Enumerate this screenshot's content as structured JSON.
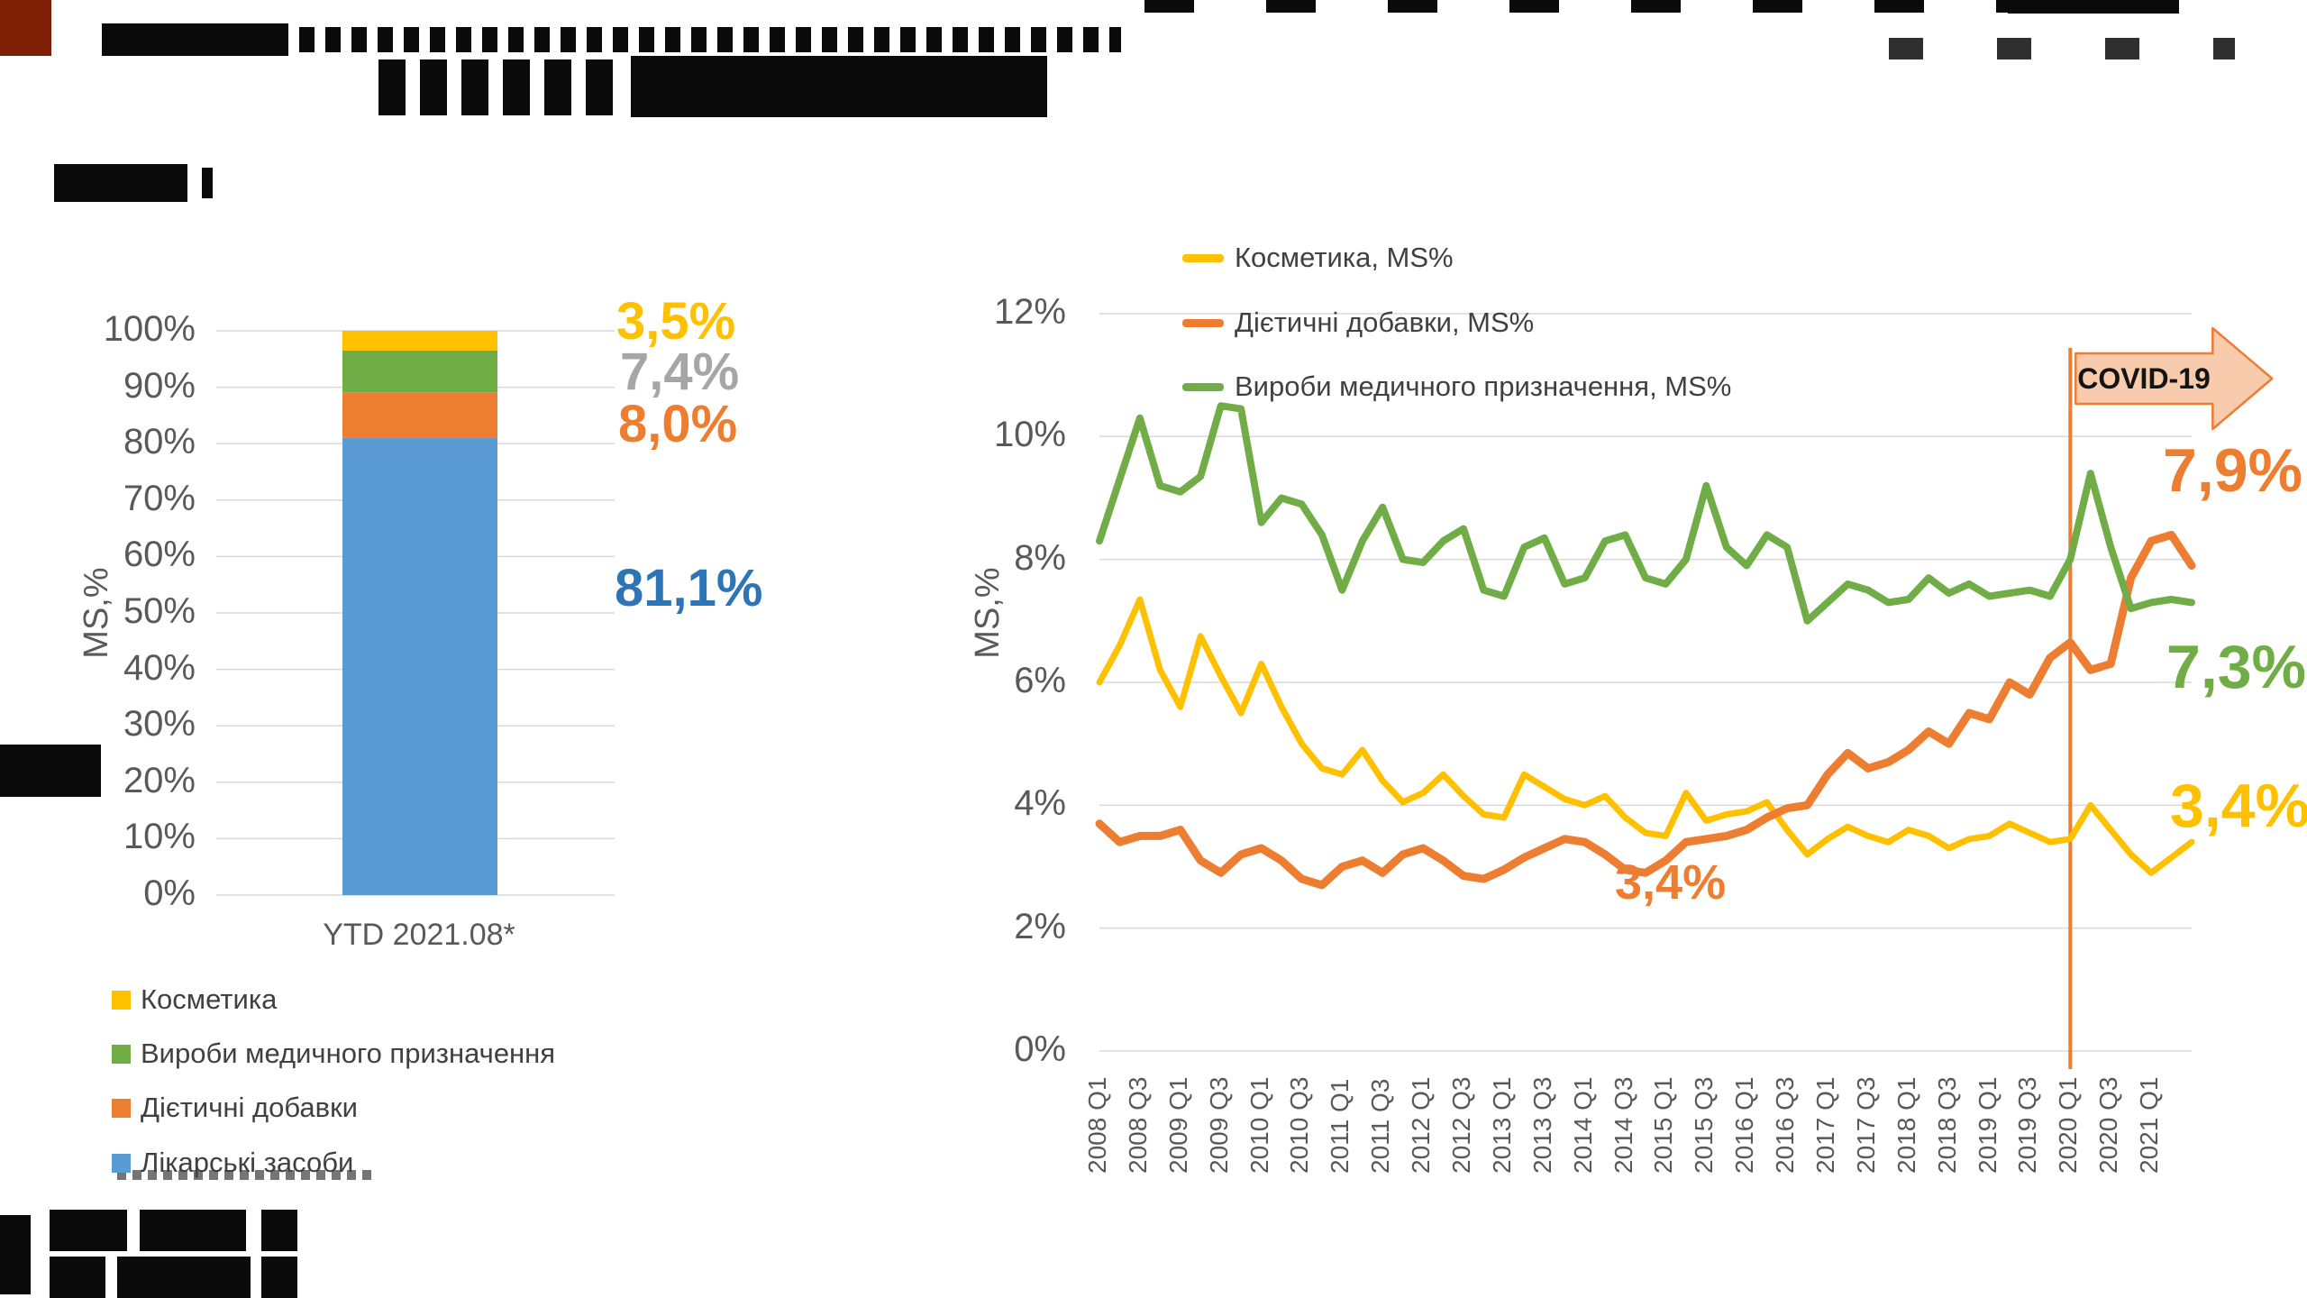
{
  "chart_data": [
    {
      "type": "bar",
      "stacked": true,
      "title": "",
      "ylabel": "MS,%",
      "ylim": [
        0,
        100
      ],
      "grid": true,
      "y_ticks": [
        "0%",
        "10%",
        "20%",
        "30%",
        "40%",
        "50%",
        "60%",
        "70%",
        "80%",
        "90%",
        "100%"
      ],
      "categories": [
        "YTD  2021.08*"
      ],
      "series": [
        {
          "name": "Лікарські засоби",
          "color": "#5B9BD5",
          "values": [
            81.1
          ]
        },
        {
          "name": "Дієтичні добавки",
          "color": "#ED7D31",
          "values": [
            8.0
          ]
        },
        {
          "name": "Вироби медичного призначення",
          "color": "#70AD47",
          "values": [
            7.4
          ]
        },
        {
          "name": "Косметика",
          "color": "#FFC000",
          "values": [
            3.5
          ]
        }
      ],
      "value_labels": [
        {
          "text": "3,5%",
          "color": "#FFC000"
        },
        {
          "text": "7,4%",
          "color": "#A6A6A6"
        },
        {
          "text": "8,0%",
          "color": "#ED7D31"
        },
        {
          "text": "81,1%",
          "color": "#2E75B6"
        }
      ],
      "legend_position": "bottom-left",
      "legend": [
        {
          "label": "Косметика",
          "color": "#FFC000"
        },
        {
          "label": "Вироби медичного призначення",
          "color": "#70AD47"
        },
        {
          "label": "Дієтичні добавки",
          "color": "#ED7D31"
        },
        {
          "label": "Лікарські засоби",
          "color": "#5B9BD5"
        }
      ]
    },
    {
      "type": "line",
      "title": "",
      "ylabel": "MS,%",
      "ylim": [
        0,
        12
      ],
      "grid": true,
      "legend_position": "top",
      "y_ticks": [
        "0%",
        "2%",
        "4%",
        "6%",
        "8%",
        "10%",
        "12%"
      ],
      "x_range": [
        "2008 Q1",
        "2021 Q3"
      ],
      "x_tick_labels": [
        "2008 Q1",
        "2008 Q3",
        "2009 Q1",
        "2009 Q3",
        "2010 Q1",
        "2010 Q3",
        "2011 Q1",
        "2011 Q3",
        "2012 Q1",
        "2012 Q3",
        "2013 Q1",
        "2013 Q3",
        "2014 Q1",
        "2014 Q3",
        "2015 Q1",
        "2015 Q3",
        "2016 Q1",
        "2016 Q3",
        "2017 Q1",
        "2017 Q3",
        "2018 Q1",
        "2018 Q3",
        "2019 Q1",
        "2019 Q3",
        "2020 Q1",
        "2020 Q3",
        "2021 Q1"
      ],
      "series": [
        {
          "name": "Косметика, MS%",
          "color": "#FFC000",
          "values": [
            6.0,
            6.6,
            7.35,
            6.2,
            5.6,
            6.75,
            6.1,
            5.5,
            6.3,
            5.6,
            5.0,
            4.6,
            4.5,
            4.9,
            4.4,
            4.05,
            4.2,
            4.5,
            4.15,
            3.85,
            3.8,
            4.5,
            4.3,
            4.1,
            4.0,
            4.15,
            3.8,
            3.55,
            3.5,
            4.2,
            3.75,
            3.85,
            3.9,
            4.05,
            3.6,
            3.2,
            3.45,
            3.65,
            3.5,
            3.4,
            3.6,
            3.5,
            3.3,
            3.45,
            3.5,
            3.7,
            3.55,
            3.4,
            3.45,
            4.0,
            3.6,
            3.2,
            2.9,
            3.15,
            3.4
          ]
        },
        {
          "name": "Дієтичні добавки, MS%",
          "color": "#ED7D31",
          "values": [
            3.7,
            3.4,
            3.5,
            3.5,
            3.6,
            3.1,
            2.9,
            3.2,
            3.3,
            3.1,
            2.8,
            2.7,
            3.0,
            3.1,
            2.9,
            3.2,
            3.3,
            3.1,
            2.85,
            2.8,
            2.95,
            3.15,
            3.3,
            3.45,
            3.4,
            3.2,
            2.95,
            2.9,
            3.1,
            3.4,
            3.45,
            3.5,
            3.6,
            3.8,
            3.95,
            4.0,
            4.5,
            4.85,
            4.6,
            4.7,
            4.9,
            5.2,
            5.0,
            5.5,
            5.4,
            6.0,
            5.8,
            6.4,
            6.65,
            6.2,
            6.3,
            7.7,
            8.3,
            8.4,
            7.9
          ]
        },
        {
          "name": "Вироби медичного призначення, MS%",
          "color": "#70AD47",
          "values": [
            8.3,
            9.3,
            10.3,
            9.2,
            9.1,
            9.35,
            10.5,
            10.45,
            8.6,
            9.0,
            8.9,
            8.4,
            7.5,
            8.3,
            8.85,
            8.0,
            7.95,
            8.3,
            8.5,
            7.5,
            7.4,
            8.2,
            8.35,
            7.6,
            7.7,
            8.3,
            8.4,
            7.7,
            7.6,
            8.0,
            9.2,
            8.2,
            7.9,
            8.4,
            8.2,
            7.0,
            7.3,
            7.6,
            7.5,
            7.3,
            7.35,
            7.7,
            7.45,
            7.6,
            7.4,
            7.45,
            7.5,
            7.4,
            8.0,
            9.4,
            8.2,
            7.2,
            7.3,
            7.35,
            7.3
          ]
        }
      ],
      "annotations": {
        "vline_x": "2020 Q1",
        "vline_color": "#ED7D31",
        "covid_arrow_label": "COVID-19",
        "covid_arrow_fill": "#F8CBAD",
        "covid_arrow_border": "#ED7D31",
        "end_labels": [
          {
            "text": "7,9%",
            "color": "#ED7D31"
          },
          {
            "text": "7,3%",
            "color": "#70AD47"
          },
          {
            "text": "3,4%",
            "color": "#FFC000"
          }
        ],
        "mid_label": {
          "text": "3,4%",
          "color": "#ED7D31"
        }
      }
    }
  ]
}
